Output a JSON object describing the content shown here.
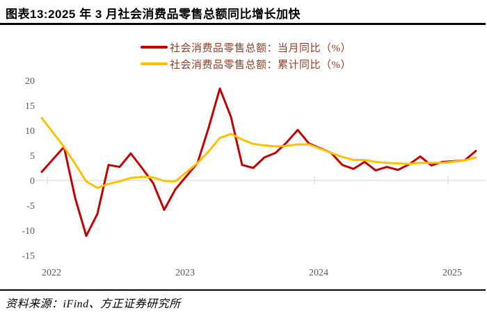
{
  "header": {
    "title": "图表13:2025 年 3 月社会消费品零售总额同比增长加快"
  },
  "legend": [
    {
      "label": "社会消费品零售总额：当月同比（%）",
      "color": "#C00000"
    },
    {
      "label": "社会消费品零售总额：累计同比（%）",
      "color": "#FFC000"
    }
  ],
  "source": {
    "text": "资料来源：iFind、方正证券研究所"
  },
  "colors": {
    "accent_red": "#C00000",
    "accent_gold": "#FFC000",
    "legend_text": "#8E3F26",
    "axis_text": "#595959",
    "gridline": "#D9D9D9",
    "divider": "#000000"
  },
  "chart_data": {
    "type": "line",
    "title": "2025 年 3 月社会消费品零售总额同比增长加快",
    "xlabel": "",
    "ylabel": "",
    "ylim": [
      -15,
      20
    ],
    "yticks": [
      20,
      15,
      10,
      5,
      0,
      -5,
      -10,
      -15
    ],
    "grid": "zero-line-only",
    "legend_position": "top",
    "x_months": [
      "2021-12",
      "2022-01",
      "2022-02",
      "2022-03",
      "2022-04",
      "2022-05",
      "2022-06",
      "2022-07",
      "2022-08",
      "2022-09",
      "2022-10",
      "2022-11",
      "2022-12",
      "2023-01",
      "2023-02",
      "2023-03",
      "2023-04",
      "2023-05",
      "2023-06",
      "2023-07",
      "2023-08",
      "2023-09",
      "2023-10",
      "2023-11",
      "2023-12",
      "2024-01",
      "2024-02",
      "2024-03",
      "2024-04",
      "2024-05",
      "2024-06",
      "2024-07",
      "2024-08",
      "2024-09",
      "2024-10",
      "2024-11",
      "2024-12",
      "2025-01",
      "2025-02",
      "2025-03"
    ],
    "xticks": [
      {
        "label": "2022",
        "month_index": 1
      },
      {
        "label": "2023",
        "month_index": 13
      },
      {
        "label": "2024",
        "month_index": 25
      },
      {
        "label": "2025",
        "month_index": 37
      }
    ],
    "series": [
      {
        "name": "社会消费品零售总额：当月同比（%）",
        "color": "#C00000",
        "values": [
          1.7,
          null,
          6.7,
          -3.5,
          -11.1,
          -6.7,
          3.1,
          2.7,
          5.4,
          2.5,
          -0.5,
          -5.9,
          -1.8,
          null,
          3.5,
          10.6,
          18.4,
          12.7,
          3.1,
          2.5,
          4.6,
          5.5,
          7.6,
          10.1,
          7.4,
          null,
          5.5,
          3.1,
          2.3,
          3.7,
          2.0,
          2.7,
          2.1,
          3.2,
          4.8,
          3.0,
          3.7,
          null,
          4.0,
          5.9
        ]
      },
      {
        "name": "社会消费品零售总额：累计同比（%）",
        "color": "#FFC000",
        "values": [
          12.5,
          null,
          6.7,
          3.3,
          -0.2,
          -1.5,
          -0.7,
          -0.2,
          0.5,
          0.7,
          0.6,
          -0.1,
          -0.2,
          null,
          3.5,
          5.8,
          8.5,
          9.3,
          8.2,
          7.3,
          7.0,
          6.8,
          6.9,
          7.2,
          7.2,
          null,
          5.5,
          4.7,
          4.1,
          4.1,
          3.7,
          3.5,
          3.4,
          3.3,
          3.5,
          3.5,
          3.5,
          null,
          4.0,
          4.6
        ]
      }
    ]
  }
}
